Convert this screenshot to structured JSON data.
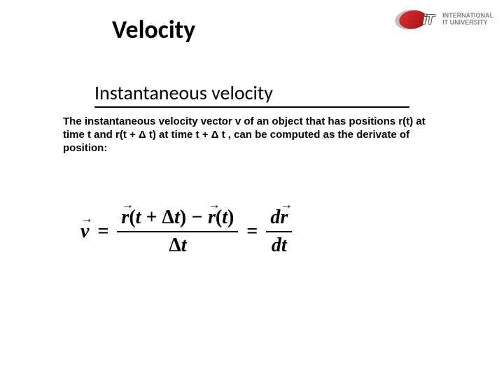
{
  "title": "Velocity",
  "subheading": "Instantaneous velocity",
  "body_text": "The instantaneous velocity vector v of an object that has positions r(t) at time t and r(t + Δ t) at time t + Δ t , can be computed as the derivate of position:",
  "logo": {
    "abbrev": "iT",
    "line1": "INTERNATIONAL",
    "line2": "IT UNIVERSITY"
  },
  "formula": {
    "lhs_var": "v",
    "num_r1": "r",
    "num_arg1_a": "(",
    "num_arg1_b": "t + ",
    "num_arg1_delta": "Δ",
    "num_arg1_c": "t",
    "num_arg1_d": ")",
    "num_minus": " − ",
    "num_r2": "r",
    "num_arg2_a": "(",
    "num_arg2_b": "t",
    "num_arg2_c": ")",
    "den1_delta": "Δ",
    "den1_t": "t",
    "rhs_num_d": "d",
    "rhs_num_r": "r",
    "rhs_den_d": "d",
    "rhs_den_t": "t"
  },
  "styling": {
    "title_fontsize": 36,
    "subheading_fontsize": 28,
    "body_fontsize": 15,
    "formula_fontsize": 28,
    "title_color": "#000000",
    "text_color": "#000000",
    "background_color": "#ffffff",
    "underline_color": "#000000",
    "logo_red": "#c02020",
    "logo_gray": "#808080"
  }
}
